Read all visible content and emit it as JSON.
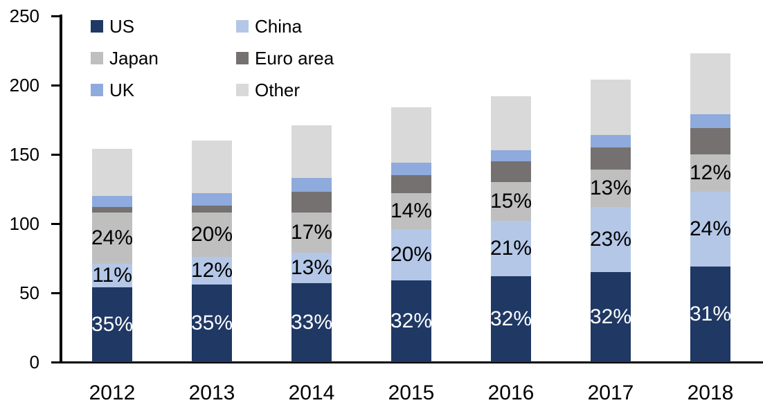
{
  "chart_data": {
    "type": "bar",
    "stacked": true,
    "title": "",
    "categories": [
      "2012",
      "2013",
      "2014",
      "2015",
      "2016",
      "2017",
      "2018"
    ],
    "series": [
      {
        "name": "US",
        "color": "#1F3864",
        "values": [
          54,
          56,
          57,
          59,
          62,
          65,
          69
        ],
        "segment_labels": [
          "35%",
          "35%",
          "33%",
          "32%",
          "32%",
          "32%",
          "31%"
        ],
        "label_color": "#FFFFFF"
      },
      {
        "name": "China",
        "color": "#B4C7E7",
        "values": [
          17,
          20,
          22,
          37,
          40,
          47,
          54
        ],
        "segment_labels": [
          "11%",
          "12%",
          "13%",
          "20%",
          "21%",
          "23%",
          "24%"
        ],
        "label_color": "#000000"
      },
      {
        "name": "Japan",
        "color": "#BFBFBF",
        "values": [
          37,
          32,
          29,
          26,
          28,
          27,
          27
        ],
        "segment_labels": [
          "24%",
          "20%",
          "17%",
          "14%",
          "15%",
          "13%",
          "12%"
        ],
        "label_color": "#000000"
      },
      {
        "name": "Euro area",
        "color": "#767171",
        "values": [
          4,
          5,
          15,
          13,
          15,
          16,
          19
        ],
        "segment_labels": null,
        "label_color": null
      },
      {
        "name": "UK",
        "color": "#8FAADC",
        "values": [
          8,
          9,
          10,
          9,
          8,
          9,
          10
        ],
        "segment_labels": null,
        "label_color": null
      },
      {
        "name": "Other",
        "color": "#D9D9D9",
        "values": [
          34,
          38,
          38,
          40,
          39,
          40,
          44
        ],
        "segment_labels": null,
        "label_color": null
      }
    ],
    "totals": [
      154,
      160,
      171,
      184,
      192,
      204,
      223
    ],
    "y_axis": {
      "min": 0,
      "max": 250,
      "step": 50,
      "tick_labels": [
        "0",
        "50",
        "100",
        "150",
        "200",
        "250"
      ]
    },
    "x_axis": {
      "tick_labels": [
        "2012",
        "2013",
        "2014",
        "2015",
        "2016",
        "2017",
        "2018"
      ]
    },
    "legend": {
      "position": "top-left",
      "columns": 2,
      "entries": [
        "US",
        "China",
        "Japan",
        "Euro area",
        "UK",
        "Other"
      ]
    },
    "grid": false,
    "axis_color": "#000000",
    "background_color": "#FFFFFF"
  }
}
